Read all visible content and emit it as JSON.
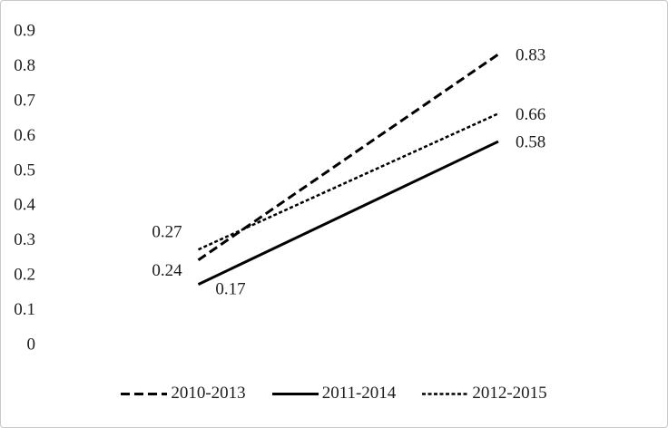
{
  "chart_data": {
    "type": "line",
    "title": "",
    "xlabel": "",
    "ylabel": "",
    "ylim": [
      0,
      0.9
    ],
    "yticks": [
      {
        "value": 0.9,
        "label": "0.9"
      },
      {
        "value": 0.8,
        "label": "0.8"
      },
      {
        "value": 0.7,
        "label": "0.7"
      },
      {
        "value": 0.6,
        "label": "0.6"
      },
      {
        "value": 0.5,
        "label": "0.5"
      },
      {
        "value": 0.4,
        "label": "0.4"
      },
      {
        "value": 0.3,
        "label": "0.3"
      },
      {
        "value": 0.2,
        "label": "0.2"
      },
      {
        "value": 0.1,
        "label": "0.1"
      },
      {
        "value": 0,
        "label": "0"
      }
    ],
    "grid": false,
    "series": [
      {
        "name": "2010-2013",
        "line_style": "long-dash",
        "values": [
          0.24,
          0.83
        ],
        "value_labels": [
          "0.24",
          "0.83"
        ]
      },
      {
        "name": "2011-2014",
        "line_style": "solid",
        "values": [
          0.17,
          0.58
        ],
        "value_labels": [
          "0.17",
          "0.58"
        ]
      },
      {
        "name": "2012-2015",
        "line_style": "fine-dash",
        "values": [
          0.27,
          0.66
        ],
        "value_labels": [
          "0.27",
          "0.66"
        ]
      }
    ],
    "legend": {
      "position": "bottom",
      "entries": [
        "2010-2013",
        "2011-2014",
        "2012-2015"
      ]
    },
    "colors": {
      "line": "#000000",
      "text": "#1c1c1c",
      "border": "#c8c8c8",
      "background": "#ffffff"
    }
  }
}
